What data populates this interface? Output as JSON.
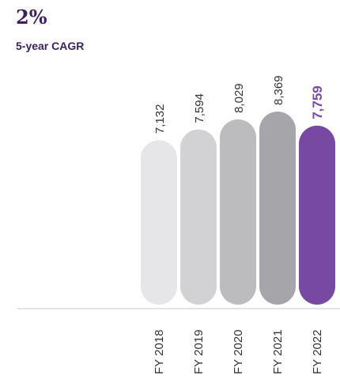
{
  "summary": {
    "cagr_value": "2%",
    "cagr_label": "5-year CAGR"
  },
  "colors": {
    "heading": "#3b1f5e",
    "highlight": "#7849a3",
    "baseline": "#c8c8c8",
    "label": "#333333"
  },
  "chart_data": {
    "type": "bar",
    "categories": [
      "FY 2018",
      "FY 2019",
      "FY 2020",
      "FY 2021",
      "FY 2022"
    ],
    "values": [
      7132,
      7594,
      8029,
      8369,
      7759
    ],
    "value_labels": [
      "7,132",
      "7,594",
      "8,029",
      "8,369",
      "7,759"
    ],
    "bar_colors": [
      "#e6e6e8",
      "#d2d2d4",
      "#bcbcbf",
      "#a6a6aa",
      "#7849a3"
    ],
    "highlight_index": 4,
    "title": "",
    "xlabel": "",
    "ylabel": "",
    "grid": false,
    "legend": "none"
  }
}
